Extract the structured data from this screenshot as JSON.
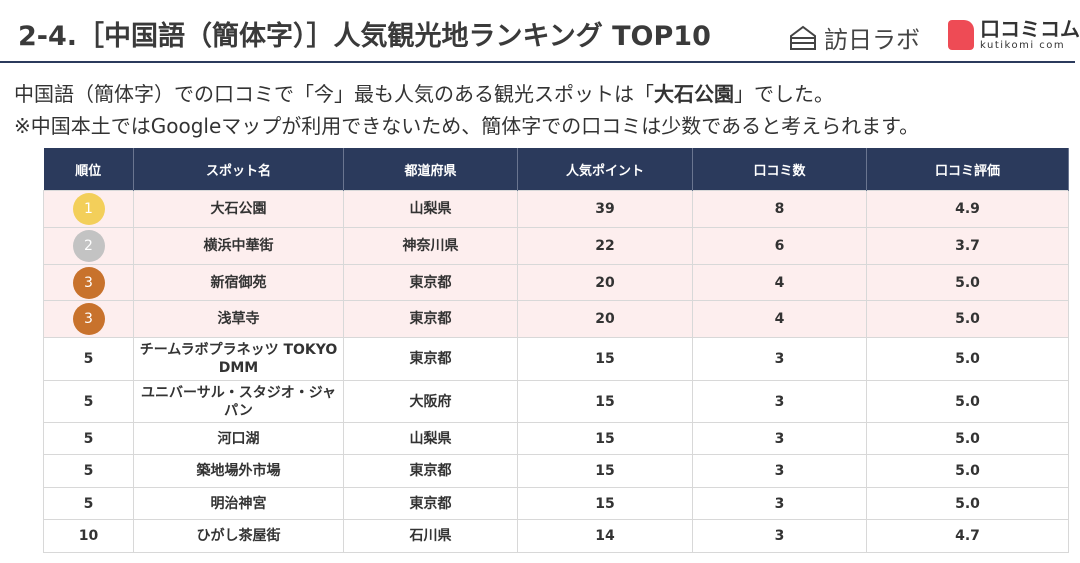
{
  "header": {
    "title": "2-4.［中国語（簡体字）］人気観光地ランキング TOP10",
    "logo_left": "訪日ラボ",
    "logo_right": "口コミコム",
    "logo_right_sub": "kutikomi com"
  },
  "intro": {
    "line1_before": "中国語（簡体字）での口コミで「今」最も人気のある観光スポットは「",
    "line1_bold": "大石公園",
    "line1_after": "」でした。",
    "line2": "※中国本土ではGoogleマップが利用できないため、簡体字での口コミは少数であると考えられます。"
  },
  "table": {
    "headers": [
      "順位",
      "スポット名",
      "都道府県",
      "人気ポイント",
      "口コミ数",
      "口コミ評価"
    ],
    "rows": [
      [
        "1",
        "大石公園",
        "山梨県",
        "39",
        "8",
        "4.9"
      ],
      [
        "2",
        "横浜中華街",
        "神奈川県",
        "22",
        "6",
        "3.7"
      ],
      [
        "3",
        "新宿御苑",
        "東京都",
        "20",
        "4",
        "5.0"
      ],
      [
        "3",
        "浅草寺",
        "東京都",
        "20",
        "4",
        "5.0"
      ],
      [
        "5",
        "チームラボプラネッツ TOKYO DMM",
        "東京都",
        "15",
        "3",
        "5.0"
      ],
      [
        "5",
        "ユニバーサル・スタジオ・ジャパン",
        "大阪府",
        "15",
        "3",
        "5.0"
      ],
      [
        "5",
        "河口湖",
        "山梨県",
        "15",
        "3",
        "5.0"
      ],
      [
        "5",
        "築地場外市場",
        "東京都",
        "15",
        "3",
        "5.0"
      ],
      [
        "5",
        "明治神宮",
        "東京都",
        "15",
        "3",
        "5.0"
      ],
      [
        "10",
        "ひがし茶屋街",
        "石川県",
        "14",
        "3",
        "4.7"
      ]
    ]
  }
}
